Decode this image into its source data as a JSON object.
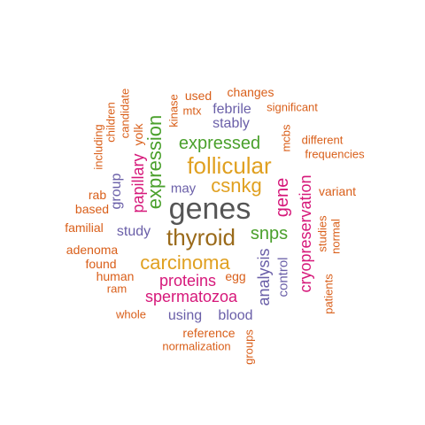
{
  "palette": {
    "grey": "#555555",
    "brown": "#9a6a1a",
    "gold": "#e0a020",
    "green": "#4aa02c",
    "magenta": "#d6187a",
    "purple": "#6a5fa8",
    "orange": "#d95f1a"
  },
  "words": [
    {
      "text": "genes",
      "color": "grey",
      "vertical": false
    },
    {
      "text": "thyroid",
      "color": "brown",
      "vertical": false
    },
    {
      "text": "follicular",
      "color": "gold",
      "vertical": false
    },
    {
      "text": "carcinoma",
      "color": "gold",
      "vertical": false
    },
    {
      "text": "csnkg",
      "color": "gold",
      "vertical": false
    },
    {
      "text": "expression",
      "color": "green",
      "vertical": true
    },
    {
      "text": "expressed",
      "color": "green",
      "vertical": false
    },
    {
      "text": "snps",
      "color": "green",
      "vertical": false
    },
    {
      "text": "gene",
      "color": "magenta",
      "vertical": true
    },
    {
      "text": "cryopreservation",
      "color": "magenta",
      "vertical": true
    },
    {
      "text": "spermatozoa",
      "color": "magenta",
      "vertical": false
    },
    {
      "text": "proteins",
      "color": "magenta",
      "vertical": false
    },
    {
      "text": "papillary",
      "color": "magenta",
      "vertical": true
    },
    {
      "text": "analysis",
      "color": "purple",
      "vertical": true
    },
    {
      "text": "control",
      "color": "purple",
      "vertical": true
    },
    {
      "text": "study",
      "color": "purple",
      "vertical": false
    },
    {
      "text": "using",
      "color": "purple",
      "vertical": false
    },
    {
      "text": "blood",
      "color": "purple",
      "vertical": false
    },
    {
      "text": "may",
      "color": "purple",
      "vertical": false
    },
    {
      "text": "stably",
      "color": "purple",
      "vertical": false
    },
    {
      "text": "febrile",
      "color": "purple",
      "vertical": false
    },
    {
      "text": "group",
      "color": "purple",
      "vertical": true
    },
    {
      "text": "yolk",
      "color": "orange",
      "vertical": true
    },
    {
      "text": "used",
      "color": "orange",
      "vertical": false
    },
    {
      "text": "changes",
      "color": "orange",
      "vertical": false
    },
    {
      "text": "kinase",
      "color": "orange",
      "vertical": true
    },
    {
      "text": "mtx",
      "color": "orange",
      "vertical": false
    },
    {
      "text": "significant",
      "color": "orange",
      "vertical": false
    },
    {
      "text": "mcbs",
      "color": "orange",
      "vertical": true
    },
    {
      "text": "different",
      "color": "orange",
      "vertical": false
    },
    {
      "text": "frequencies",
      "color": "orange",
      "vertical": false
    },
    {
      "text": "variant",
      "color": "orange",
      "vertical": false
    },
    {
      "text": "studies",
      "color": "orange",
      "vertical": true
    },
    {
      "text": "normal",
      "color": "orange",
      "vertical": true
    },
    {
      "text": "patients",
      "color": "orange",
      "vertical": true
    },
    {
      "text": "including",
      "color": "orange",
      "vertical": true
    },
    {
      "text": "children",
      "color": "orange",
      "vertical": true
    },
    {
      "text": "candidate",
      "color": "orange",
      "vertical": true
    },
    {
      "text": "rab",
      "color": "orange",
      "vertical": false
    },
    {
      "text": "based",
      "color": "orange",
      "vertical": false
    },
    {
      "text": "familial",
      "color": "orange",
      "vertical": false
    },
    {
      "text": "adenoma",
      "color": "orange",
      "vertical": false
    },
    {
      "text": "found",
      "color": "orange",
      "vertical": false
    },
    {
      "text": "human",
      "color": "orange",
      "vertical": false
    },
    {
      "text": "ram",
      "color": "orange",
      "vertical": false
    },
    {
      "text": "egg",
      "color": "orange",
      "vertical": false
    },
    {
      "text": "whole",
      "color": "orange",
      "vertical": false
    },
    {
      "text": "reference",
      "color": "orange",
      "vertical": false
    },
    {
      "text": "normalization",
      "color": "orange",
      "vertical": false
    },
    {
      "text": "groups",
      "color": "orange",
      "vertical": true
    }
  ]
}
